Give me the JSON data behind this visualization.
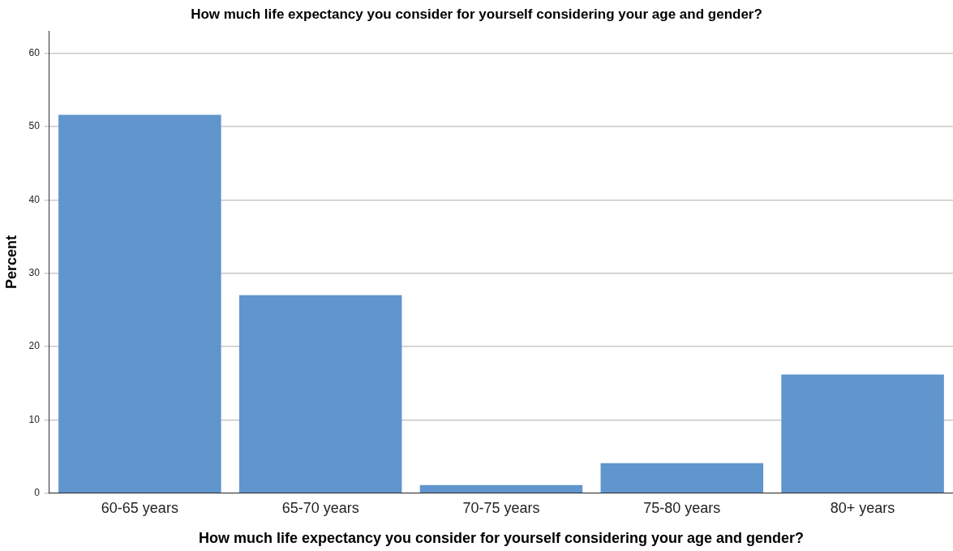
{
  "chart_data": {
    "type": "bar",
    "title": "How much life expectancy you consider for yourself considering your age and gender?",
    "xlabel": "How much life expectancy you consider for yourself considering your age and gender?",
    "ylabel": "Percent",
    "categories": [
      "60-65 years",
      "65-70 years",
      "70-75 years",
      "75-80 years",
      "80+ years"
    ],
    "values": [
      51.6,
      27.0,
      1.1,
      4.1,
      16.2
    ],
    "color": "#6095cd",
    "ylim": [
      0,
      63
    ],
    "yticks": [
      0,
      10,
      20,
      30,
      40,
      50,
      60
    ],
    "grid": "y"
  }
}
